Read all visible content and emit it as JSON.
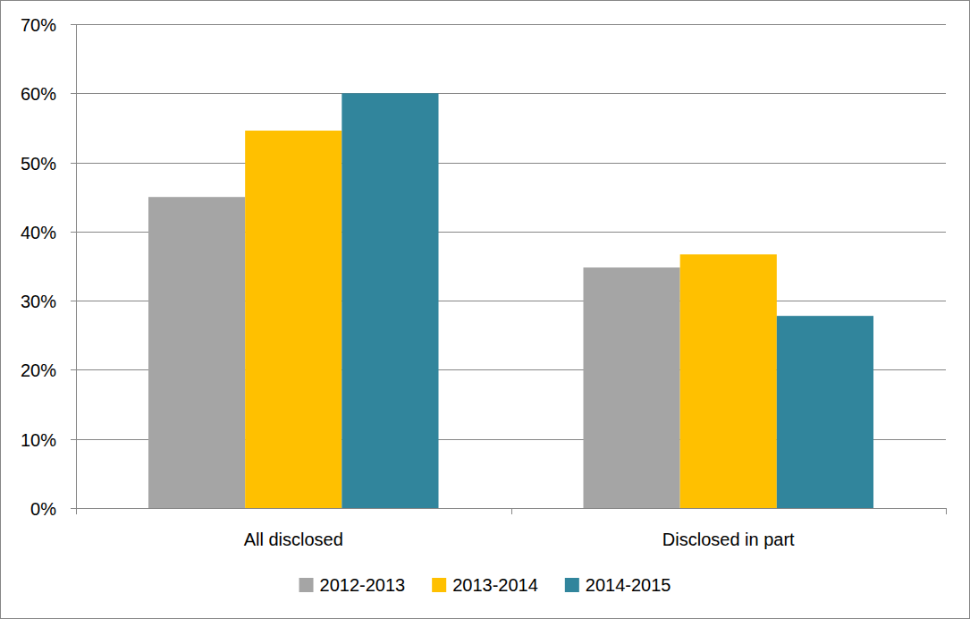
{
  "chart_data": {
    "type": "bar",
    "categories": [
      "All disclosed",
      "Disclosed in part"
    ],
    "series": [
      {
        "name": "2012-2013",
        "color": "#a5a5a5",
        "values": [
          45,
          34.8
        ]
      },
      {
        "name": "2013-2014",
        "color": "#ffc000",
        "values": [
          54.6,
          36.7
        ]
      },
      {
        "name": "2014-2015",
        "color": "#31859c",
        "values": [
          60,
          27.8
        ]
      }
    ],
    "ylim": [
      0,
      70
    ],
    "yticks": [
      {
        "value": 0,
        "label": "0%"
      },
      {
        "value": 10,
        "label": "10%"
      },
      {
        "value": 20,
        "label": "20%"
      },
      {
        "value": 30,
        "label": "30%"
      },
      {
        "value": 40,
        "label": "40%"
      },
      {
        "value": 50,
        "label": "50%"
      },
      {
        "value": 60,
        "label": "60%"
      },
      {
        "value": 70,
        "label": "70%"
      }
    ],
    "grid": true,
    "legend": "bottom"
  }
}
